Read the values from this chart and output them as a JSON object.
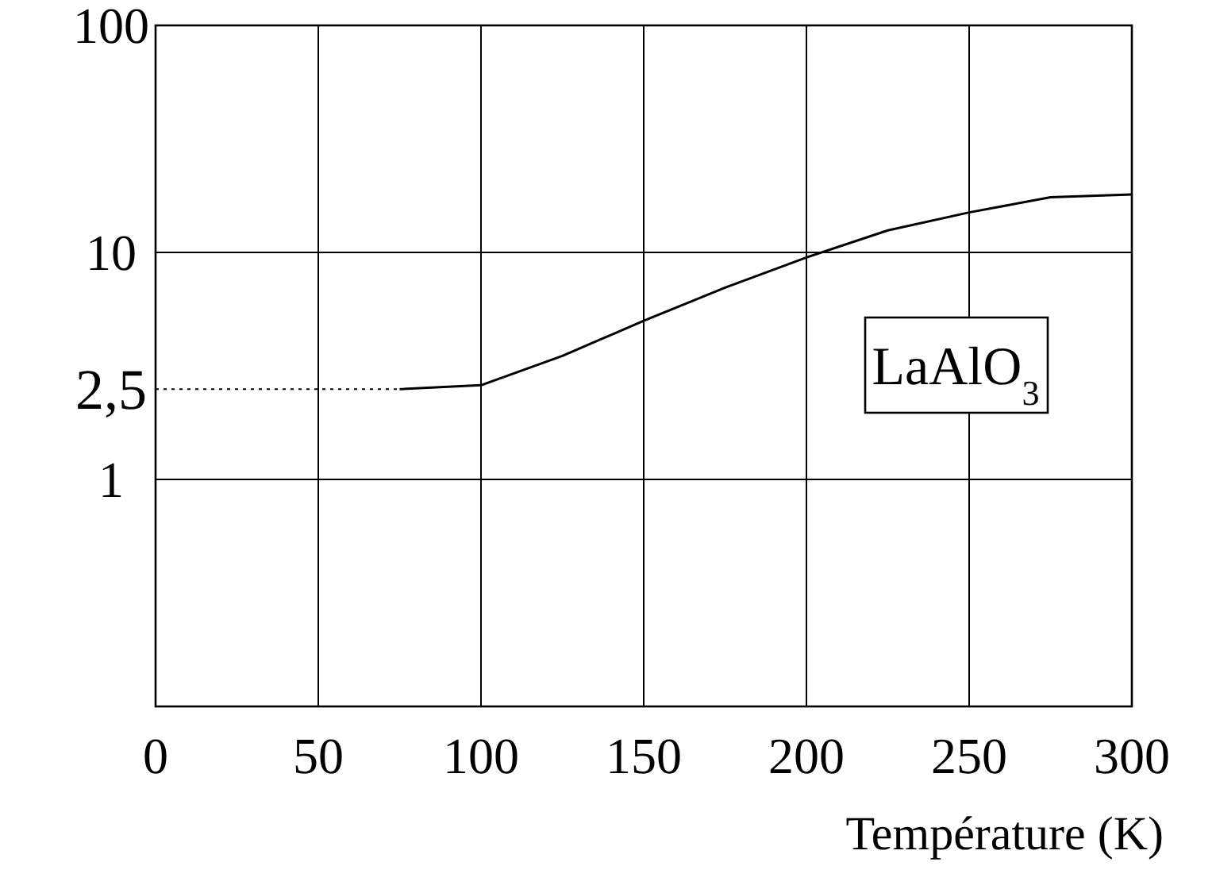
{
  "chart_data": {
    "type": "line",
    "xlabel": "Température (K)",
    "x": [
      75,
      100,
      125,
      150,
      175,
      200,
      225,
      250,
      275,
      300
    ],
    "series": [
      {
        "color": "#000000",
        "values": [
          2.5,
          2.6,
          3.5,
          5,
          7,
          9.5,
          12.5,
          15,
          17.5,
          18
        ]
      }
    ],
    "xlim": [
      0,
      300
    ],
    "xticks": [
      0,
      50,
      100,
      150,
      200,
      250,
      300
    ],
    "ylim": [
      0.1,
      100
    ],
    "yticks": [
      {
        "value": 0.1,
        "label": null
      },
      1,
      10,
      100
    ],
    "log": true,
    "grid": true,
    "line_style": "solid",
    "ref_lines": [
      {
        "axis": "y",
        "value": 2.5,
        "label": "2,5",
        "line_style": "dotted"
      }
    ],
    "annotations": [
      "LaAlO$_{3}$"
    ]
  }
}
